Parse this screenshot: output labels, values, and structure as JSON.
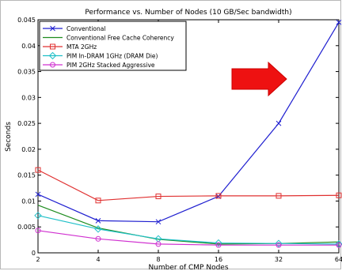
{
  "chart_data": {
    "type": "line",
    "title": "Performance vs. Number of Nodes (10 GB/Sec bandwidth)",
    "xlabel": "Number of CMP Nodes",
    "ylabel": "Seconds",
    "x": [
      2,
      4,
      8,
      16,
      32,
      64
    ],
    "x_tick_labels": [
      "2",
      "4",
      "8",
      "16",
      "32",
      "64"
    ],
    "x_scale": "log2",
    "ylim": [
      0,
      0.045
    ],
    "y_ticks": [
      0,
      0.005,
      0.01,
      0.015,
      0.02,
      0.025,
      0.03,
      0.035,
      0.04,
      0.045
    ],
    "y_tick_labels": [
      "0",
      "0.005",
      "0.01",
      "0.015",
      "0.02",
      "0.025",
      "0.03",
      "0.035",
      "0.04",
      "0.045"
    ],
    "grid": false,
    "legend_placement": "top-left",
    "series": [
      {
        "name": "Conventional",
        "color": "#1f1fd0",
        "marker": "x",
        "values": [
          0.0113,
          0.0062,
          0.006,
          0.0109,
          0.025,
          0.0445
        ]
      },
      {
        "name": "Conventional Free Cache Coherency",
        "color": "#1e8c1e",
        "marker": "none",
        "values": [
          0.0092,
          0.0048,
          0.0026,
          0.0017,
          0.0018,
          0.0021
        ]
      },
      {
        "name": "MTA 2GHz",
        "color": "#e03030",
        "marker": "square",
        "values": [
          0.016,
          0.0101,
          0.0109,
          0.011,
          0.011,
          0.0111
        ]
      },
      {
        "name": "PIM In-DRAM 1GHz (DRAM Die)",
        "color": "#20c0c8",
        "marker": "diamond",
        "values": [
          0.0072,
          0.0046,
          0.0027,
          0.0019,
          0.0018,
          0.0017
        ]
      },
      {
        "name": "PIM 2GHz Stacked Aggressive",
        "color": "#d030d0",
        "marker": "circle",
        "values": [
          0.0043,
          0.0027,
          0.0017,
          0.0015,
          0.0015,
          0.0015
        ]
      }
    ],
    "annotation": {
      "shape": "right-arrow",
      "color": "#ee1111"
    }
  }
}
